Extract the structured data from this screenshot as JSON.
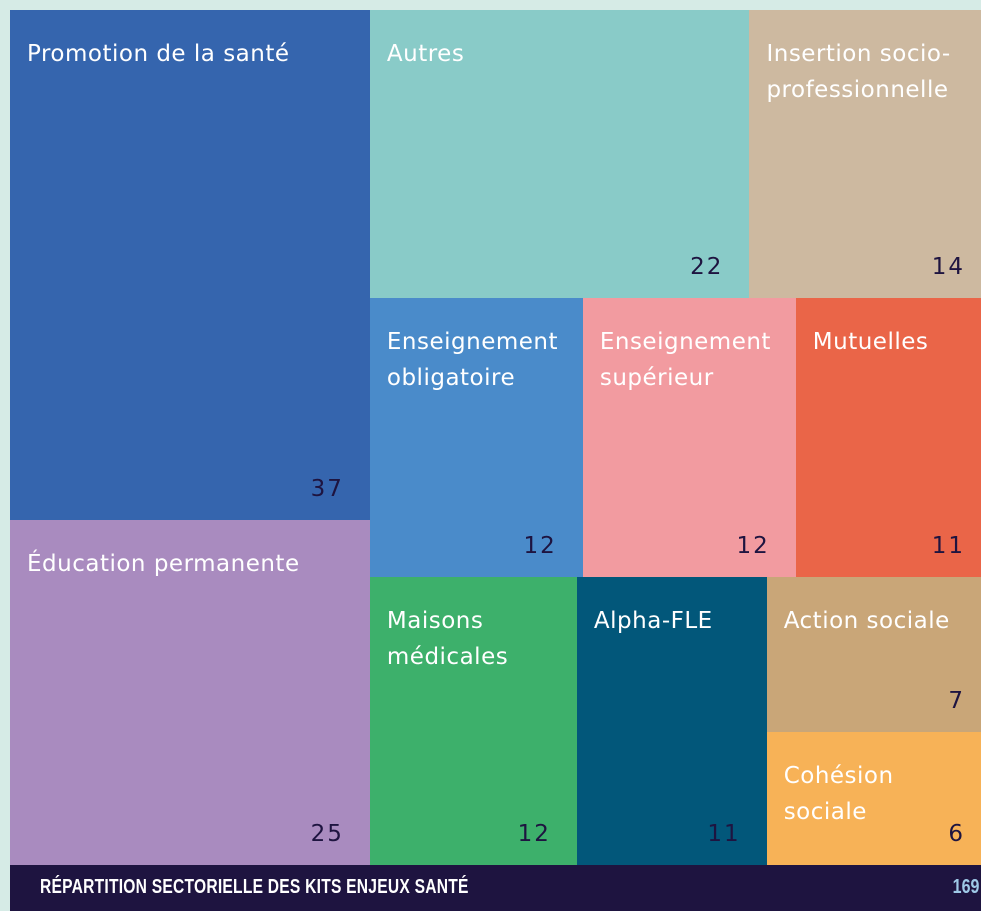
{
  "chart_data": {
    "type": "treemap",
    "title": "RÉPARTITION SECTORIELLE DES KITS ENJEUX SANTÉ",
    "categories": [
      "Promotion de la santé",
      "Éducation permanente",
      "Autres",
      "Insertion socio-professionnelle",
      "Enseignement obligatoire",
      "Enseignement supérieur",
      "Mutuelles",
      "Maisons médicales",
      "Alpha-FLE",
      "Action sociale",
      "Cohésion sociale"
    ],
    "values": [
      37,
      25,
      22,
      14,
      12,
      12,
      11,
      12,
      11,
      7,
      6
    ],
    "colors": [
      "#3565ae",
      "#a98bbf",
      "#89cbc8",
      "#cdb9a0",
      "#4a8bca",
      "#f29ba0",
      "#ea6548",
      "#3db06b",
      "#02577a",
      "#c9a678",
      "#f7b257"
    ]
  },
  "page_number": 169
}
